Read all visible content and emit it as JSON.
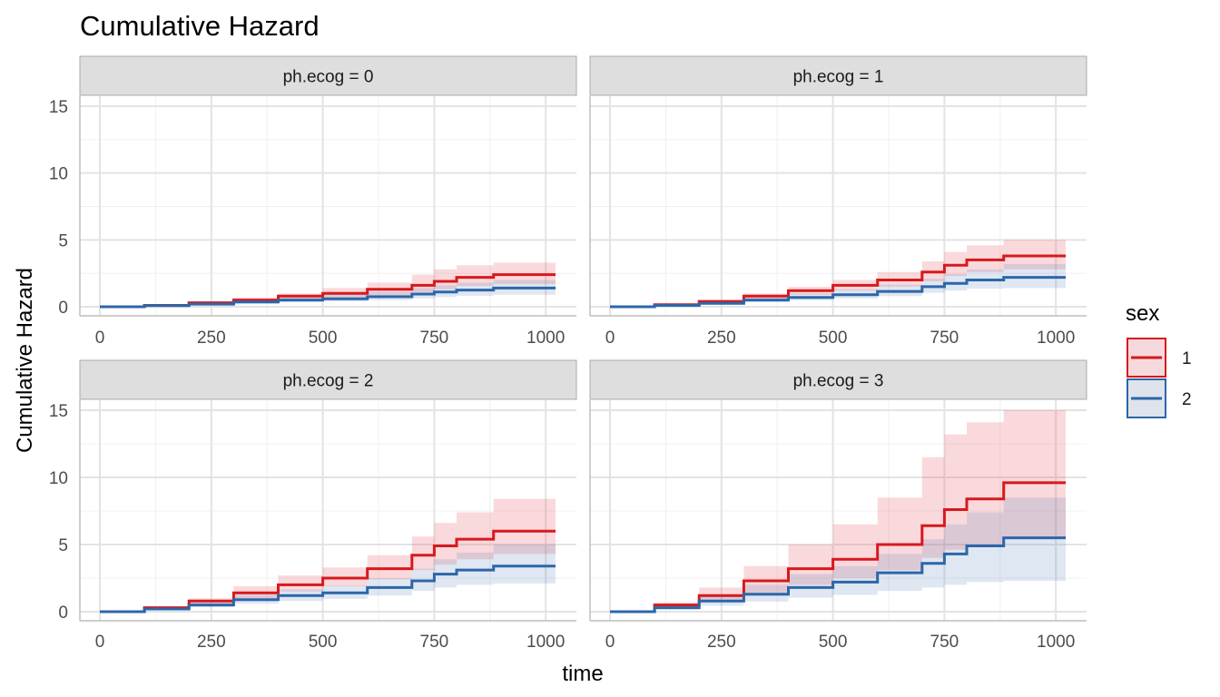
{
  "chart_data": {
    "type": "line",
    "title": "Cumulative Hazard",
    "xlabel": "time",
    "ylabel": "Cumulative Hazard",
    "xlim": [
      0,
      1022
    ],
    "ylim": [
      0,
      15
    ],
    "x_ticks": [
      0,
      250,
      500,
      750,
      1000
    ],
    "y_ticks": [
      0,
      5,
      10,
      15
    ],
    "grid": true,
    "legend": {
      "title": "sex",
      "position": "right",
      "entries": [
        "1",
        "2"
      ]
    },
    "colors": {
      "1": "#d7191c",
      "2": "#2c66a9",
      "overlap": "#4a5b93"
    },
    "facets": [
      {
        "label": "ph.ecog = 0",
        "series": [
          {
            "name": "1",
            "x": [
              0,
              100,
              200,
              300,
              400,
              500,
              600,
              700,
              750,
              800,
              883,
              1022
            ],
            "y": [
              0,
              0.1,
              0.3,
              0.5,
              0.8,
              1.0,
              1.3,
              1.6,
              1.9,
              2.2,
              2.4,
              2.4
            ],
            "lower": [
              0,
              0.05,
              0.2,
              0.35,
              0.55,
              0.7,
              0.9,
              1.1,
              1.3,
              1.55,
              1.7,
              1.7
            ],
            "upper": [
              0,
              0.15,
              0.4,
              0.7,
              1.0,
              1.4,
              1.8,
              2.4,
              2.8,
              3.1,
              3.3,
              3.3
            ]
          },
          {
            "name": "2",
            "x": [
              0,
              100,
              200,
              300,
              400,
              500,
              600,
              700,
              750,
              800,
              883,
              1022
            ],
            "y": [
              0,
              0.08,
              0.2,
              0.35,
              0.5,
              0.6,
              0.75,
              0.95,
              1.1,
              1.25,
              1.4,
              1.4
            ],
            "lower": [
              0,
              0.04,
              0.13,
              0.23,
              0.33,
              0.4,
              0.5,
              0.62,
              0.72,
              0.82,
              0.9,
              0.9
            ],
            "upper": [
              0,
              0.12,
              0.3,
              0.5,
              0.7,
              0.9,
              1.1,
              1.4,
              1.6,
              1.8,
              2.0,
              2.0
            ]
          }
        ]
      },
      {
        "label": "ph.ecog = 1",
        "series": [
          {
            "name": "1",
            "x": [
              0,
              100,
              200,
              300,
              400,
              500,
              600,
              700,
              750,
              800,
              883,
              1022
            ],
            "y": [
              0,
              0.15,
              0.4,
              0.8,
              1.2,
              1.6,
              2.0,
              2.6,
              3.1,
              3.5,
              3.8,
              3.8
            ],
            "lower": [
              0,
              0.1,
              0.3,
              0.6,
              0.9,
              1.2,
              1.5,
              1.9,
              2.3,
              2.6,
              2.8,
              2.8
            ],
            "upper": [
              0,
              0.2,
              0.5,
              1.0,
              1.5,
              2.0,
              2.6,
              3.4,
              4.1,
              4.6,
              5.0,
              5.0
            ]
          },
          {
            "name": "2",
            "x": [
              0,
              100,
              200,
              300,
              400,
              500,
              600,
              700,
              750,
              800,
              883,
              1022
            ],
            "y": [
              0,
              0.1,
              0.25,
              0.5,
              0.7,
              0.9,
              1.15,
              1.5,
              1.75,
              2.0,
              2.2,
              2.2
            ],
            "lower": [
              0,
              0.06,
              0.17,
              0.34,
              0.48,
              0.62,
              0.8,
              1.05,
              1.2,
              1.35,
              1.4,
              1.4
            ],
            "upper": [
              0,
              0.14,
              0.35,
              0.7,
              1.0,
              1.3,
              1.65,
              2.1,
              2.45,
              2.8,
              3.2,
              3.2
            ]
          }
        ]
      },
      {
        "label": "ph.ecog = 2",
        "series": [
          {
            "name": "1",
            "x": [
              0,
              100,
              200,
              300,
              400,
              500,
              600,
              700,
              750,
              800,
              883,
              1022
            ],
            "y": [
              0,
              0.3,
              0.8,
              1.4,
              2.0,
              2.5,
              3.2,
              4.2,
              4.9,
              5.4,
              6.0,
              6.0
            ],
            "lower": [
              0,
              0.2,
              0.6,
              1.0,
              1.5,
              1.9,
              2.4,
              3.1,
              3.5,
              3.9,
              4.3,
              4.3
            ],
            "upper": [
              0,
              0.4,
              1.0,
              1.9,
              2.7,
              3.3,
              4.2,
              5.6,
              6.6,
              7.4,
              8.4,
              8.4
            ]
          },
          {
            "name": "2",
            "x": [
              0,
              100,
              200,
              300,
              400,
              500,
              600,
              700,
              750,
              800,
              883,
              1022
            ],
            "y": [
              0,
              0.2,
              0.5,
              0.9,
              1.2,
              1.4,
              1.8,
              2.3,
              2.8,
              3.1,
              3.4,
              3.4
            ],
            "lower": [
              0,
              0.12,
              0.33,
              0.6,
              0.8,
              0.95,
              1.2,
              1.55,
              1.8,
              2.0,
              2.1,
              2.1
            ],
            "upper": [
              0,
              0.28,
              0.7,
              1.25,
              1.65,
              1.95,
              2.5,
              3.2,
              3.9,
              4.4,
              5.0,
              5.0
            ]
          }
        ]
      },
      {
        "label": "ph.ecog = 3",
        "series": [
          {
            "name": "1",
            "x": [
              0,
              100,
              200,
              300,
              400,
              500,
              600,
              700,
              750,
              800,
              883,
              1022
            ],
            "y": [
              0,
              0.5,
              1.2,
              2.3,
              3.2,
              3.9,
              5.0,
              6.4,
              7.6,
              8.4,
              9.6,
              9.6
            ],
            "lower": [
              0,
              0.3,
              0.8,
              1.4,
              2.0,
              2.5,
              3.1,
              4.0,
              4.6,
              5.0,
              5.4,
              5.4
            ],
            "upper": [
              0,
              0.7,
              1.8,
              3.4,
              5.0,
              6.5,
              8.5,
              11.5,
              13.2,
              14.1,
              15.0,
              15.0
            ]
          },
          {
            "name": "2",
            "x": [
              0,
              100,
              200,
              300,
              400,
              500,
              600,
              700,
              750,
              800,
              883,
              1022
            ],
            "y": [
              0,
              0.3,
              0.8,
              1.3,
              1.8,
              2.2,
              2.9,
              3.6,
              4.3,
              4.9,
              5.5,
              5.5
            ],
            "lower": [
              0,
              0.15,
              0.45,
              0.75,
              1.05,
              1.25,
              1.55,
              1.8,
              2.0,
              2.2,
              2.3,
              2.3
            ],
            "upper": [
              0,
              0.45,
              1.2,
              2.0,
              2.8,
              3.4,
              4.3,
              5.4,
              6.5,
              7.4,
              8.5,
              8.5
            ]
          }
        ]
      }
    ]
  }
}
